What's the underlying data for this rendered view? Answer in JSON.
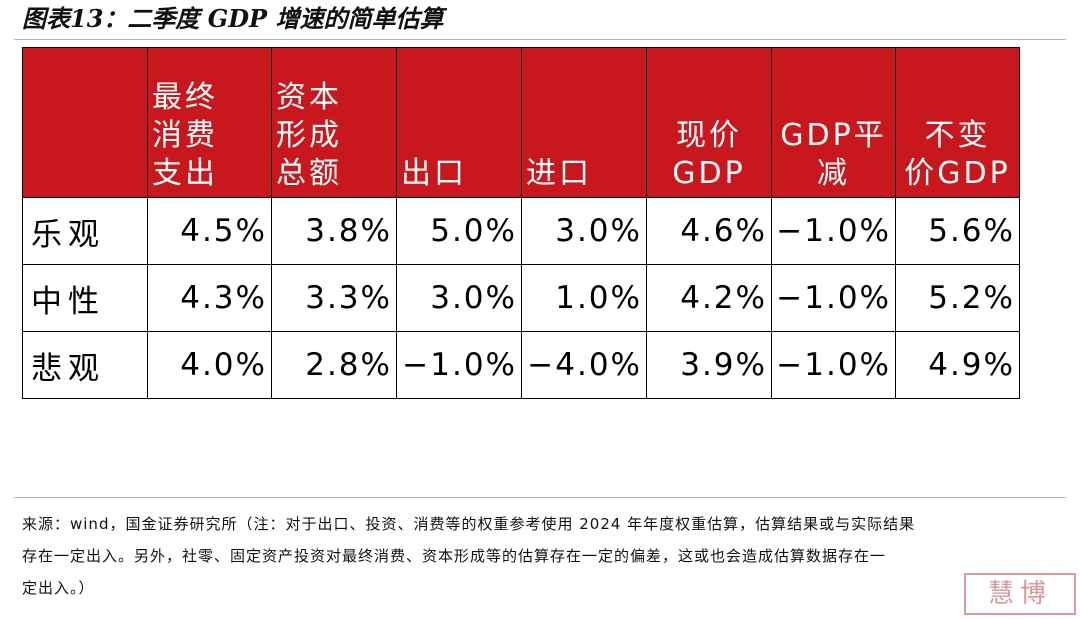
{
  "title": "图表13：二季度 GDP 增速的简单估算",
  "table": {
    "headers": [
      [
        ""
      ],
      [
        "最终",
        "消费",
        "支出"
      ],
      [
        "资本",
        "形成",
        "总额"
      ],
      [
        "出口"
      ],
      [
        "进口"
      ],
      [
        "现价",
        "GDP"
      ],
      [
        "GDP平",
        "减"
      ],
      [
        "不变",
        "价GDP"
      ]
    ],
    "rows": [
      {
        "label": "乐观",
        "values": [
          "4.5%",
          "3.8%",
          "5.0%",
          "3.0%",
          "4.6%",
          "−1.0%",
          "5.6%"
        ]
      },
      {
        "label": "中性",
        "values": [
          "4.3%",
          "3.3%",
          "3.0%",
          "1.0%",
          "4.2%",
          "−1.0%",
          "5.2%"
        ]
      },
      {
        "label": "悲观",
        "values": [
          "4.0%",
          "2.8%",
          "−1.0%",
          "−4.0%",
          "3.9%",
          "−1.0%",
          "4.9%"
        ]
      }
    ]
  },
  "source": {
    "line1": "来源：wind，国金证券研究所（注：对于出口、投资、消费等的权重参考使用 2024 年年度权重估算，估算结果或与实际结果",
    "line2": "存在一定出入。另外，社零、固定资产投资对最终消费、资本形成等的估算存在一定的偏差，这或也会造成估算数据存在一",
    "line3": "定出入。）"
  },
  "watermark": "慧博"
}
